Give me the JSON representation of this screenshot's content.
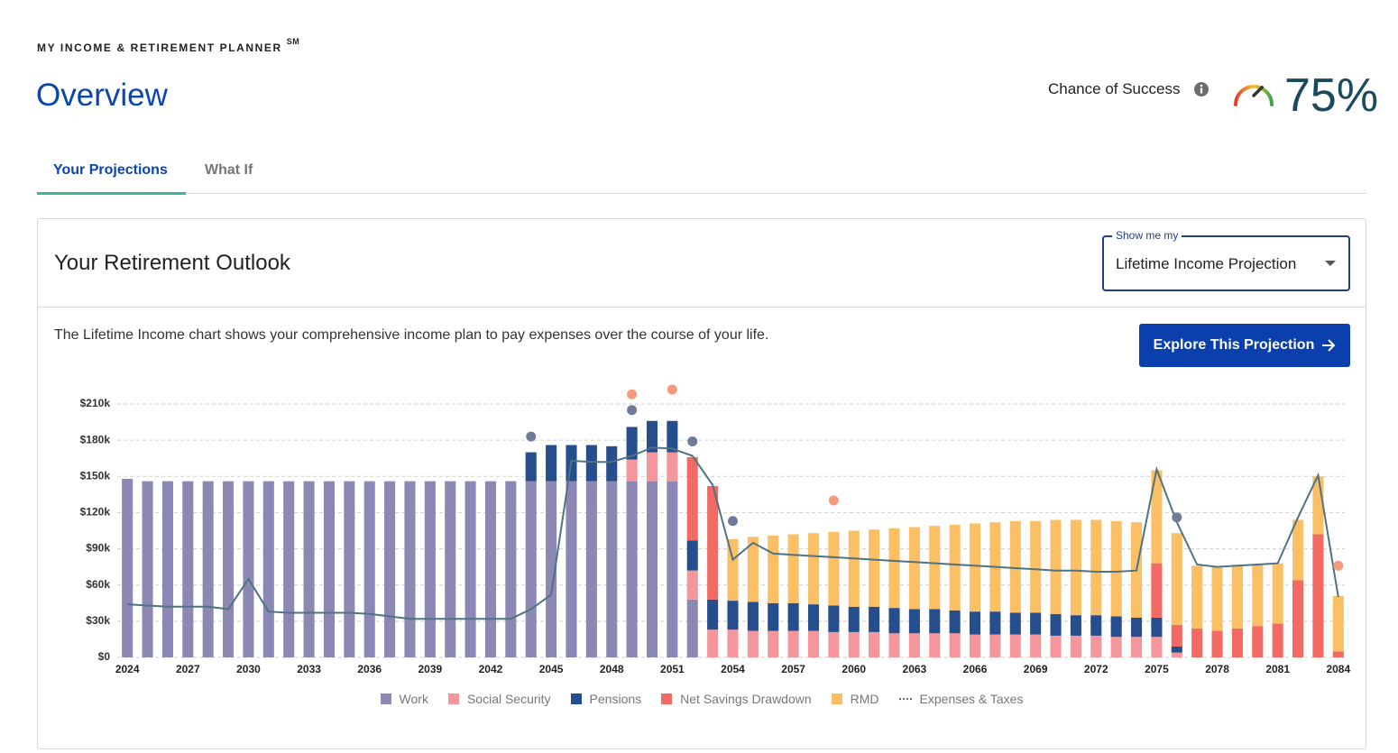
{
  "header": {
    "product": "MY INCOME & RETIREMENT PLANNER",
    "service_mark": "SM",
    "title": "Overview"
  },
  "success": {
    "label": "Chance of Success",
    "value": 75,
    "value_label": "75%"
  },
  "tabs": [
    "Your Projections",
    "What If"
  ],
  "card": {
    "title": "Your Retirement Outlook",
    "select_label": "Show me my",
    "select_value": "Lifetime Income Projection",
    "description": "The Lifetime Income chart shows your comprehensive income plan to pay expenses over the course of your life.",
    "button": "Explore This Projection"
  },
  "chart_data": {
    "type": "bar",
    "stacked": true,
    "grid": true,
    "x": [
      2024,
      2025,
      2026,
      2027,
      2028,
      2029,
      2030,
      2031,
      2032,
      2033,
      2034,
      2035,
      2036,
      2037,
      2038,
      2039,
      2040,
      2041,
      2042,
      2043,
      2044,
      2045,
      2046,
      2047,
      2048,
      2049,
      2050,
      2051,
      2052,
      2053,
      2054,
      2055,
      2056,
      2057,
      2058,
      2059,
      2060,
      2061,
      2062,
      2063,
      2064,
      2065,
      2066,
      2067,
      2068,
      2069,
      2070,
      2071,
      2072,
      2073,
      2074,
      2075,
      2076,
      2077,
      2078,
      2079,
      2080,
      2081,
      2082,
      2083,
      2084
    ],
    "xlim": [
      2023.5,
      2084.5
    ],
    "xticks": [
      2024,
      2027,
      2030,
      2033,
      2036,
      2039,
      2042,
      2045,
      2048,
      2051,
      2054,
      2057,
      2060,
      2063,
      2066,
      2069,
      2072,
      2075,
      2078,
      2081,
      2084
    ],
    "ylim": [
      0,
      210000
    ],
    "yticks": [
      {
        "value": 0,
        "label": "$0"
      },
      {
        "value": 30000,
        "label": "$30k"
      },
      {
        "value": 60000,
        "label": "$60k"
      },
      {
        "value": 90000,
        "label": "$90k"
      },
      {
        "value": 120000,
        "label": "$120k"
      },
      {
        "value": 150000,
        "label": "$150k"
      },
      {
        "value": 180000,
        "label": "$180k"
      },
      {
        "value": 210000,
        "label": "$210k"
      }
    ],
    "series": [
      {
        "name": "Work",
        "color": "#8b88b4",
        "values": [
          148000,
          146000,
          146000,
          146000,
          146000,
          146000,
          146000,
          146000,
          146000,
          146000,
          146000,
          146000,
          146000,
          146000,
          146000,
          146000,
          146000,
          146000,
          146000,
          146000,
          146000,
          146000,
          146000,
          146000,
          146000,
          146000,
          146000,
          146000,
          48000,
          null,
          null,
          null,
          null,
          null,
          null,
          null,
          null,
          null,
          null,
          null,
          null,
          null,
          null,
          null,
          null,
          null,
          null,
          null,
          null,
          null,
          null,
          null,
          null,
          null,
          null,
          null,
          null,
          null,
          null,
          null,
          null
        ]
      },
      {
        "name": "Social Security",
        "color": "#f5959c",
        "values": [
          null,
          null,
          null,
          null,
          null,
          null,
          null,
          null,
          null,
          null,
          null,
          null,
          null,
          null,
          null,
          null,
          null,
          null,
          null,
          null,
          null,
          null,
          null,
          null,
          null,
          18000,
          24000,
          24000,
          24000,
          23000,
          23000,
          22000,
          22000,
          22000,
          22000,
          21000,
          21000,
          21000,
          20000,
          20000,
          20000,
          20000,
          19000,
          19000,
          19000,
          19000,
          18000,
          18000,
          18000,
          17000,
          17000,
          17000,
          4000,
          null,
          null,
          null,
          null,
          null,
          null,
          null,
          null
        ]
      },
      {
        "name": "Pensions",
        "color": "#264d8c",
        "values": [
          null,
          null,
          null,
          null,
          null,
          null,
          null,
          null,
          null,
          null,
          null,
          null,
          null,
          null,
          null,
          null,
          null,
          null,
          null,
          null,
          24000,
          30000,
          30000,
          30000,
          29000,
          27000,
          26000,
          26000,
          25000,
          25000,
          24000,
          24000,
          23000,
          23000,
          22000,
          22000,
          21000,
          21000,
          21000,
          20000,
          20000,
          19000,
          19000,
          19000,
          18000,
          18000,
          18000,
          17000,
          17000,
          17000,
          16000,
          16000,
          5000,
          null,
          null,
          null,
          null,
          null,
          null,
          null,
          null
        ]
      },
      {
        "name": "Net Savings Drawdown",
        "color": "#f26a63",
        "values": [
          null,
          null,
          null,
          null,
          null,
          null,
          null,
          null,
          null,
          null,
          null,
          null,
          null,
          null,
          null,
          null,
          null,
          null,
          null,
          null,
          null,
          null,
          null,
          null,
          null,
          null,
          null,
          null,
          69000,
          94000,
          null,
          null,
          null,
          null,
          null,
          null,
          null,
          null,
          null,
          null,
          null,
          null,
          null,
          null,
          null,
          null,
          null,
          null,
          null,
          null,
          null,
          45000,
          18000,
          24000,
          22000,
          24000,
          26000,
          28000,
          64000,
          102000,
          5000
        ]
      },
      {
        "name": "RMD",
        "color": "#fbbf66",
        "values": [
          null,
          null,
          null,
          null,
          null,
          null,
          null,
          null,
          null,
          null,
          null,
          null,
          null,
          null,
          null,
          null,
          null,
          null,
          null,
          null,
          null,
          null,
          null,
          null,
          null,
          null,
          null,
          null,
          null,
          null,
          51000,
          54000,
          56000,
          57000,
          59000,
          61000,
          63000,
          64000,
          66000,
          68000,
          69000,
          71000,
          73000,
          74000,
          76000,
          76000,
          78000,
          79000,
          79000,
          79000,
          79000,
          77000,
          76000,
          52000,
          53000,
          52000,
          51000,
          50000,
          50000,
          48000,
          46000
        ]
      },
      {
        "name": "Expenses & Taxes",
        "type": "line",
        "color": "#4f7383",
        "values": [
          44000,
          43000,
          42000,
          42000,
          42000,
          40000,
          65000,
          38000,
          37000,
          37000,
          37000,
          37000,
          36000,
          34000,
          32000,
          32000,
          32000,
          32000,
          32000,
          32000,
          40000,
          52000,
          163000,
          162000,
          162000,
          167000,
          174000,
          173000,
          167000,
          143000,
          81000,
          95000,
          86000,
          85000,
          84000,
          83000,
          82000,
          81000,
          80000,
          79000,
          78000,
          77000,
          76000,
          75000,
          74000,
          73000,
          72000,
          72000,
          71000,
          71000,
          72000,
          156000,
          112000,
          77000,
          75000,
          76000,
          77000,
          78000,
          116000,
          151000,
          50000
        ]
      }
    ],
    "markers": [
      {
        "x": 2044,
        "y": 183000,
        "color": "#6f7b99"
      },
      {
        "x": 2049,
        "y": 205000,
        "color": "#6f7b99"
      },
      {
        "x": 2052,
        "y": 179000,
        "color": "#6f7b99"
      },
      {
        "x": 2054,
        "y": 113000,
        "color": "#6f7b99"
      },
      {
        "x": 2076,
        "y": 116000,
        "color": "#6f7b99"
      },
      {
        "x": 2049,
        "y": 218000,
        "color": "#f39b7a"
      },
      {
        "x": 2051,
        "y": 222000,
        "color": "#f39b7a"
      },
      {
        "x": 2059,
        "y": 130000,
        "color": "#f39b7a"
      },
      {
        "x": 2084,
        "y": 76000,
        "color": "#f39b7a"
      }
    ]
  }
}
